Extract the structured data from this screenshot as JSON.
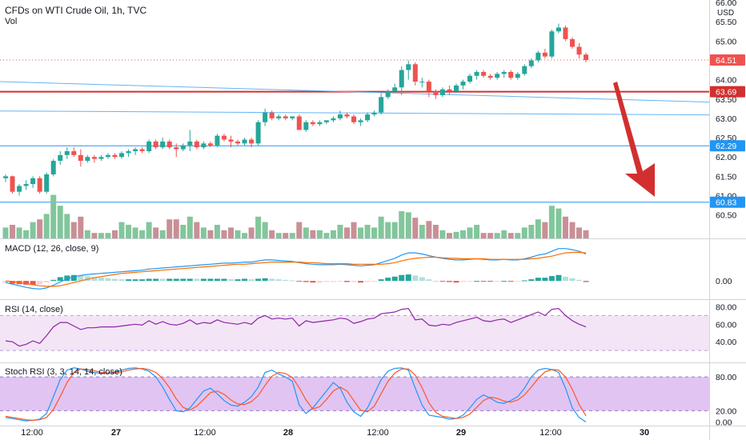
{
  "chart_data": {
    "type": "candlestick",
    "title": "CFDs on WTI Crude Oil, 1h, TVC",
    "volume_label": "Vol",
    "currency": "USD",
    "x_labels": [
      "12:00",
      "27",
      "12:00",
      "28",
      "12:00",
      "29",
      "12:00",
      "30"
    ],
    "price_axis": {
      "ticks": [
        "66.00",
        "65.50",
        "65.00",
        "64.50",
        "64.00",
        "63.50",
        "63.00",
        "62.50",
        "62.00",
        "61.50",
        "61.00",
        "60.50"
      ],
      "ylim": [
        60.1,
        66.0
      ]
    },
    "last_price": "64.51",
    "horizontal_lines": [
      {
        "value": "63.69",
        "color": "#d32f2f"
      },
      {
        "value": "62.29",
        "color": "#2196f3"
      },
      {
        "value": "60.83",
        "color": "#2196f3"
      }
    ],
    "trend_lines": [
      {
        "from": {
          "bar": 0,
          "price": 63.95
        },
        "to": {
          "bar": 92,
          "price": 63.42
        }
      },
      {
        "from": {
          "bar": 0,
          "price": 63.19
        },
        "to": {
          "bar": 92,
          "price": 63.09
        }
      }
    ],
    "candles": [
      [
        61.45,
        61.55,
        61.35,
        61.5
      ],
      [
        61.5,
        61.52,
        61.05,
        61.1
      ],
      [
        61.1,
        61.3,
        61.0,
        61.25
      ],
      [
        61.25,
        61.4,
        61.15,
        61.3
      ],
      [
        61.3,
        61.5,
        61.2,
        61.45
      ],
      [
        61.45,
        61.5,
        61.05,
        61.1
      ],
      [
        61.1,
        61.6,
        61.05,
        61.55
      ],
      [
        61.55,
        61.95,
        61.5,
        61.9
      ],
      [
        61.9,
        62.15,
        61.8,
        62.05
      ],
      [
        62.05,
        62.25,
        61.95,
        62.15
      ],
      [
        62.15,
        62.25,
        62.0,
        62.05
      ],
      [
        62.05,
        62.2,
        61.75,
        61.9
      ],
      [
        61.9,
        62.05,
        61.85,
        62.0
      ],
      [
        62.0,
        62.05,
        61.85,
        61.95
      ],
      [
        61.95,
        62.05,
        61.9,
        62.0
      ],
      [
        62.0,
        62.1,
        61.95,
        62.05
      ],
      [
        62.05,
        62.1,
        61.95,
        62.0
      ],
      [
        62.0,
        62.15,
        61.95,
        62.1
      ],
      [
        62.1,
        62.2,
        62.0,
        62.15
      ],
      [
        62.15,
        62.25,
        62.05,
        62.2
      ],
      [
        62.2,
        62.25,
        62.1,
        62.15
      ],
      [
        62.15,
        62.45,
        62.1,
        62.4
      ],
      [
        62.4,
        62.45,
        62.2,
        62.25
      ],
      [
        62.25,
        62.5,
        62.2,
        62.4
      ],
      [
        62.4,
        62.45,
        62.2,
        62.25
      ],
      [
        62.25,
        62.35,
        62.0,
        62.2
      ],
      [
        62.2,
        62.35,
        62.15,
        62.3
      ],
      [
        62.3,
        62.7,
        62.15,
        62.4
      ],
      [
        62.4,
        62.45,
        62.2,
        62.25
      ],
      [
        62.25,
        62.4,
        62.2,
        62.35
      ],
      [
        62.35,
        62.4,
        62.25,
        62.3
      ],
      [
        62.3,
        62.6,
        62.25,
        62.55
      ],
      [
        62.55,
        62.6,
        62.4,
        62.45
      ],
      [
        62.45,
        62.55,
        62.25,
        62.4
      ],
      [
        62.4,
        62.45,
        62.3,
        62.35
      ],
      [
        62.35,
        62.5,
        62.3,
        62.45
      ],
      [
        62.45,
        62.5,
        62.25,
        62.35
      ],
      [
        62.35,
        62.95,
        62.3,
        62.9
      ],
      [
        62.9,
        63.25,
        62.8,
        63.15
      ],
      [
        63.15,
        63.2,
        62.95,
        63.0
      ],
      [
        63.0,
        63.1,
        62.95,
        63.05
      ],
      [
        63.05,
        63.1,
        62.95,
        63.0
      ],
      [
        63.0,
        63.05,
        62.95,
        63.05
      ],
      [
        63.05,
        63.1,
        62.7,
        62.7
      ],
      [
        62.7,
        62.95,
        62.65,
        62.9
      ],
      [
        62.9,
        62.95,
        62.8,
        62.85
      ],
      [
        62.85,
        62.95,
        62.8,
        62.9
      ],
      [
        62.9,
        62.95,
        62.85,
        62.95
      ],
      [
        62.95,
        63.05,
        62.9,
        63.0
      ],
      [
        63.0,
        63.2,
        62.95,
        63.1
      ],
      [
        63.1,
        63.15,
        63.0,
        63.05
      ],
      [
        63.05,
        63.1,
        62.85,
        62.9
      ],
      [
        62.9,
        63.0,
        62.8,
        62.95
      ],
      [
        62.95,
        63.15,
        62.9,
        63.1
      ],
      [
        63.1,
        63.2,
        63.05,
        63.15
      ],
      [
        63.15,
        63.65,
        63.1,
        63.55
      ],
      [
        63.55,
        63.75,
        63.5,
        63.7
      ],
      [
        63.7,
        63.9,
        63.65,
        63.8
      ],
      [
        63.8,
        64.35,
        63.6,
        64.25
      ],
      [
        64.25,
        64.5,
        64.0,
        64.4
      ],
      [
        64.4,
        64.45,
        63.85,
        63.95
      ],
      [
        63.95,
        64.05,
        63.8,
        63.95
      ],
      [
        63.95,
        64.0,
        63.55,
        63.7
      ],
      [
        63.7,
        63.75,
        63.5,
        63.6
      ],
      [
        63.6,
        63.8,
        63.55,
        63.75
      ],
      [
        63.75,
        63.85,
        63.6,
        63.7
      ],
      [
        63.7,
        63.9,
        63.65,
        63.85
      ],
      [
        63.85,
        64.0,
        63.75,
        63.95
      ],
      [
        63.95,
        64.15,
        63.9,
        64.1
      ],
      [
        64.1,
        64.25,
        64.0,
        64.2
      ],
      [
        64.2,
        64.25,
        64.05,
        64.1
      ],
      [
        64.1,
        64.15,
        64.0,
        64.05
      ],
      [
        64.05,
        64.2,
        64.0,
        64.15
      ],
      [
        64.15,
        64.25,
        64.05,
        64.2
      ],
      [
        64.2,
        64.25,
        64.0,
        64.05
      ],
      [
        64.05,
        64.2,
        64.0,
        64.15
      ],
      [
        64.15,
        64.4,
        64.1,
        64.35
      ],
      [
        64.35,
        64.55,
        64.3,
        64.5
      ],
      [
        64.5,
        64.75,
        64.45,
        64.7
      ],
      [
        64.7,
        64.8,
        64.55,
        64.6
      ],
      [
        64.6,
        65.3,
        64.55,
        65.25
      ],
      [
        65.25,
        65.45,
        65.2,
        65.35
      ],
      [
        65.35,
        65.4,
        65.0,
        65.05
      ],
      [
        65.05,
        65.1,
        64.8,
        64.85
      ],
      [
        64.85,
        64.95,
        64.55,
        64.65
      ],
      [
        64.65,
        64.7,
        64.45,
        64.51
      ]
    ],
    "volume": [
      [
        0.2,
        1
      ],
      [
        0.25,
        0
      ],
      [
        0.2,
        1
      ],
      [
        0.15,
        1
      ],
      [
        0.3,
        1
      ],
      [
        0.35,
        0
      ],
      [
        0.45,
        1
      ],
      [
        0.8,
        1
      ],
      [
        0.6,
        1
      ],
      [
        0.45,
        1
      ],
      [
        0.3,
        0
      ],
      [
        0.4,
        0
      ],
      [
        0.15,
        1
      ],
      [
        0.1,
        0
      ],
      [
        0.1,
        1
      ],
      [
        0.1,
        1
      ],
      [
        0.15,
        0
      ],
      [
        0.3,
        1
      ],
      [
        0.25,
        1
      ],
      [
        0.2,
        1
      ],
      [
        0.15,
        1
      ],
      [
        0.3,
        1
      ],
      [
        0.2,
        0
      ],
      [
        0.15,
        1
      ],
      [
        0.35,
        0
      ],
      [
        0.35,
        0
      ],
      [
        0.25,
        1
      ],
      [
        0.4,
        1
      ],
      [
        0.3,
        0
      ],
      [
        0.2,
        1
      ],
      [
        0.15,
        0
      ],
      [
        0.25,
        1
      ],
      [
        0.15,
        0
      ],
      [
        0.2,
        0
      ],
      [
        0.15,
        1
      ],
      [
        0.1,
        1
      ],
      [
        0.2,
        0
      ],
      [
        0.4,
        1
      ],
      [
        0.3,
        1
      ],
      [
        0.15,
        0
      ],
      [
        0.1,
        1
      ],
      [
        0.1,
        0
      ],
      [
        0.1,
        1
      ],
      [
        0.3,
        0
      ],
      [
        0.2,
        1
      ],
      [
        0.15,
        0
      ],
      [
        0.15,
        1
      ],
      [
        0.1,
        1
      ],
      [
        0.15,
        1
      ],
      [
        0.25,
        1
      ],
      [
        0.2,
        0
      ],
      [
        0.3,
        0
      ],
      [
        0.2,
        1
      ],
      [
        0.25,
        1
      ],
      [
        0.2,
        1
      ],
      [
        0.4,
        1
      ],
      [
        0.3,
        1
      ],
      [
        0.3,
        1
      ],
      [
        0.5,
        1
      ],
      [
        0.48,
        1
      ],
      [
        0.38,
        0
      ],
      [
        0.25,
        1
      ],
      [
        0.32,
        0
      ],
      [
        0.25,
        0
      ],
      [
        0.15,
        1
      ],
      [
        0.1,
        0
      ],
      [
        0.12,
        1
      ],
      [
        0.15,
        1
      ],
      [
        0.2,
        1
      ],
      [
        0.25,
        1
      ],
      [
        0.1,
        0
      ],
      [
        0.1,
        0
      ],
      [
        0.1,
        1
      ],
      [
        0.15,
        1
      ],
      [
        0.1,
        0
      ],
      [
        0.1,
        1
      ],
      [
        0.2,
        1
      ],
      [
        0.25,
        1
      ],
      [
        0.35,
        1
      ],
      [
        0.3,
        0
      ],
      [
        0.6,
        1
      ],
      [
        0.55,
        1
      ],
      [
        0.4,
        0
      ],
      [
        0.3,
        0
      ],
      [
        0.2,
        0
      ],
      [
        0.15,
        0
      ]
    ],
    "macd": {
      "label": "MACD (12, 26, close, 9)",
      "ticks": [
        "0.00"
      ],
      "macd_line": [
        -0.03,
        -0.06,
        -0.09,
        -0.12,
        -0.14,
        -0.15,
        -0.13,
        -0.08,
        -0.02,
        0.04,
        0.08,
        0.1,
        0.12,
        0.13,
        0.14,
        0.15,
        0.16,
        0.17,
        0.18,
        0.19,
        0.2,
        0.22,
        0.23,
        0.24,
        0.25,
        0.26,
        0.27,
        0.28,
        0.29,
        0.3,
        0.31,
        0.32,
        0.33,
        0.33,
        0.34,
        0.35,
        0.35,
        0.37,
        0.39,
        0.39,
        0.38,
        0.37,
        0.36,
        0.34,
        0.32,
        0.31,
        0.3,
        0.3,
        0.3,
        0.31,
        0.3,
        0.29,
        0.28,
        0.29,
        0.3,
        0.34,
        0.38,
        0.42,
        0.48,
        0.52,
        0.52,
        0.5,
        0.47,
        0.44,
        0.42,
        0.4,
        0.39,
        0.39,
        0.4,
        0.41,
        0.4,
        0.39,
        0.39,
        0.4,
        0.39,
        0.39,
        0.41,
        0.44,
        0.48,
        0.5,
        0.55,
        0.6,
        0.6,
        0.58,
        0.55,
        0.5
      ],
      "signal_line": [
        0.0,
        -0.01,
        -0.03,
        -0.05,
        -0.07,
        -0.09,
        -0.1,
        -0.1,
        -0.09,
        -0.06,
        -0.03,
        0.0,
        0.03,
        0.06,
        0.08,
        0.1,
        0.12,
        0.14,
        0.15,
        0.16,
        0.17,
        0.18,
        0.19,
        0.2,
        0.21,
        0.22,
        0.23,
        0.24,
        0.25,
        0.26,
        0.27,
        0.28,
        0.29,
        0.3,
        0.31,
        0.31,
        0.32,
        0.33,
        0.34,
        0.35,
        0.35,
        0.35,
        0.35,
        0.35,
        0.34,
        0.34,
        0.33,
        0.32,
        0.32,
        0.32,
        0.32,
        0.31,
        0.31,
        0.31,
        0.31,
        0.31,
        0.32,
        0.34,
        0.37,
        0.4,
        0.42,
        0.43,
        0.44,
        0.44,
        0.43,
        0.42,
        0.42,
        0.41,
        0.41,
        0.41,
        0.41,
        0.4,
        0.4,
        0.4,
        0.4,
        0.4,
        0.4,
        0.41,
        0.42,
        0.44,
        0.46,
        0.49,
        0.52,
        0.53,
        0.53,
        0.52
      ],
      "y_range": [
        -0.25,
        0.7
      ]
    },
    "rsi": {
      "label": "RSI (14, close)",
      "ticks": [
        "80.00",
        "60.00",
        "40.00"
      ],
      "band": [
        30,
        70
      ],
      "y_range": [
        20,
        85
      ],
      "values": [
        41,
        40,
        35,
        37,
        41,
        38,
        47,
        57,
        62,
        62,
        58,
        54,
        56,
        56,
        57,
        57,
        57,
        58,
        59,
        60,
        59,
        64,
        60,
        63,
        60,
        59,
        61,
        65,
        60,
        62,
        61,
        65,
        62,
        61,
        60,
        62,
        60,
        67,
        70,
        66,
        67,
        66,
        67,
        58,
        64,
        62,
        63,
        64,
        65,
        67,
        66,
        61,
        63,
        66,
        67,
        72,
        73,
        74,
        77,
        78,
        65,
        66,
        59,
        58,
        60,
        59,
        62,
        64,
        66,
        68,
        64,
        63,
        65,
        66,
        62,
        65,
        68,
        71,
        74,
        70,
        77,
        78,
        70,
        64,
        60,
        57
      ]
    },
    "stoch_rsi": {
      "label": "Stoch RSI (3, 3, 14, 14, close)",
      "ticks": [
        "80.00",
        "20.00",
        "0.00"
      ],
      "band": [
        20,
        80
      ],
      "y_range": [
        -5,
        100
      ],
      "k_values": [
        8,
        6,
        4,
        2,
        3,
        5,
        15,
        45,
        75,
        92,
        96,
        94,
        90,
        88,
        86,
        87,
        89,
        92,
        95,
        96,
        94,
        90,
        80,
        62,
        40,
        20,
        18,
        25,
        40,
        55,
        60,
        50,
        38,
        30,
        28,
        35,
        45,
        62,
        88,
        92,
        85,
        80,
        72,
        30,
        15,
        25,
        40,
        55,
        70,
        60,
        35,
        18,
        10,
        25,
        50,
        75,
        90,
        95,
        96,
        92,
        60,
        30,
        12,
        10,
        8,
        5,
        6,
        12,
        25,
        40,
        48,
        42,
        35,
        33,
        38,
        45,
        60,
        80,
        92,
        95,
        93,
        88,
        60,
        25,
        8,
        0
      ],
      "d_values": [
        10,
        8,
        6,
        4,
        3,
        4,
        8,
        22,
        45,
        70,
        88,
        94,
        93,
        91,
        88,
        87,
        87,
        89,
        92,
        94,
        95,
        93,
        88,
        77,
        61,
        41,
        26,
        21,
        28,
        40,
        52,
        55,
        49,
        39,
        32,
        31,
        36,
        47,
        65,
        81,
        88,
        86,
        79,
        61,
        39,
        23,
        27,
        40,
        55,
        62,
        55,
        38,
        21,
        18,
        28,
        50,
        72,
        87,
        94,
        94,
        83,
        61,
        34,
        17,
        10,
        8,
        6,
        8,
        14,
        26,
        38,
        44,
        42,
        37,
        35,
        39,
        48,
        62,
        77,
        89,
        93,
        92,
        80,
        58,
        31,
        11
      ]
    }
  },
  "annotations": {
    "arrow_color": "#d32f2f"
  }
}
